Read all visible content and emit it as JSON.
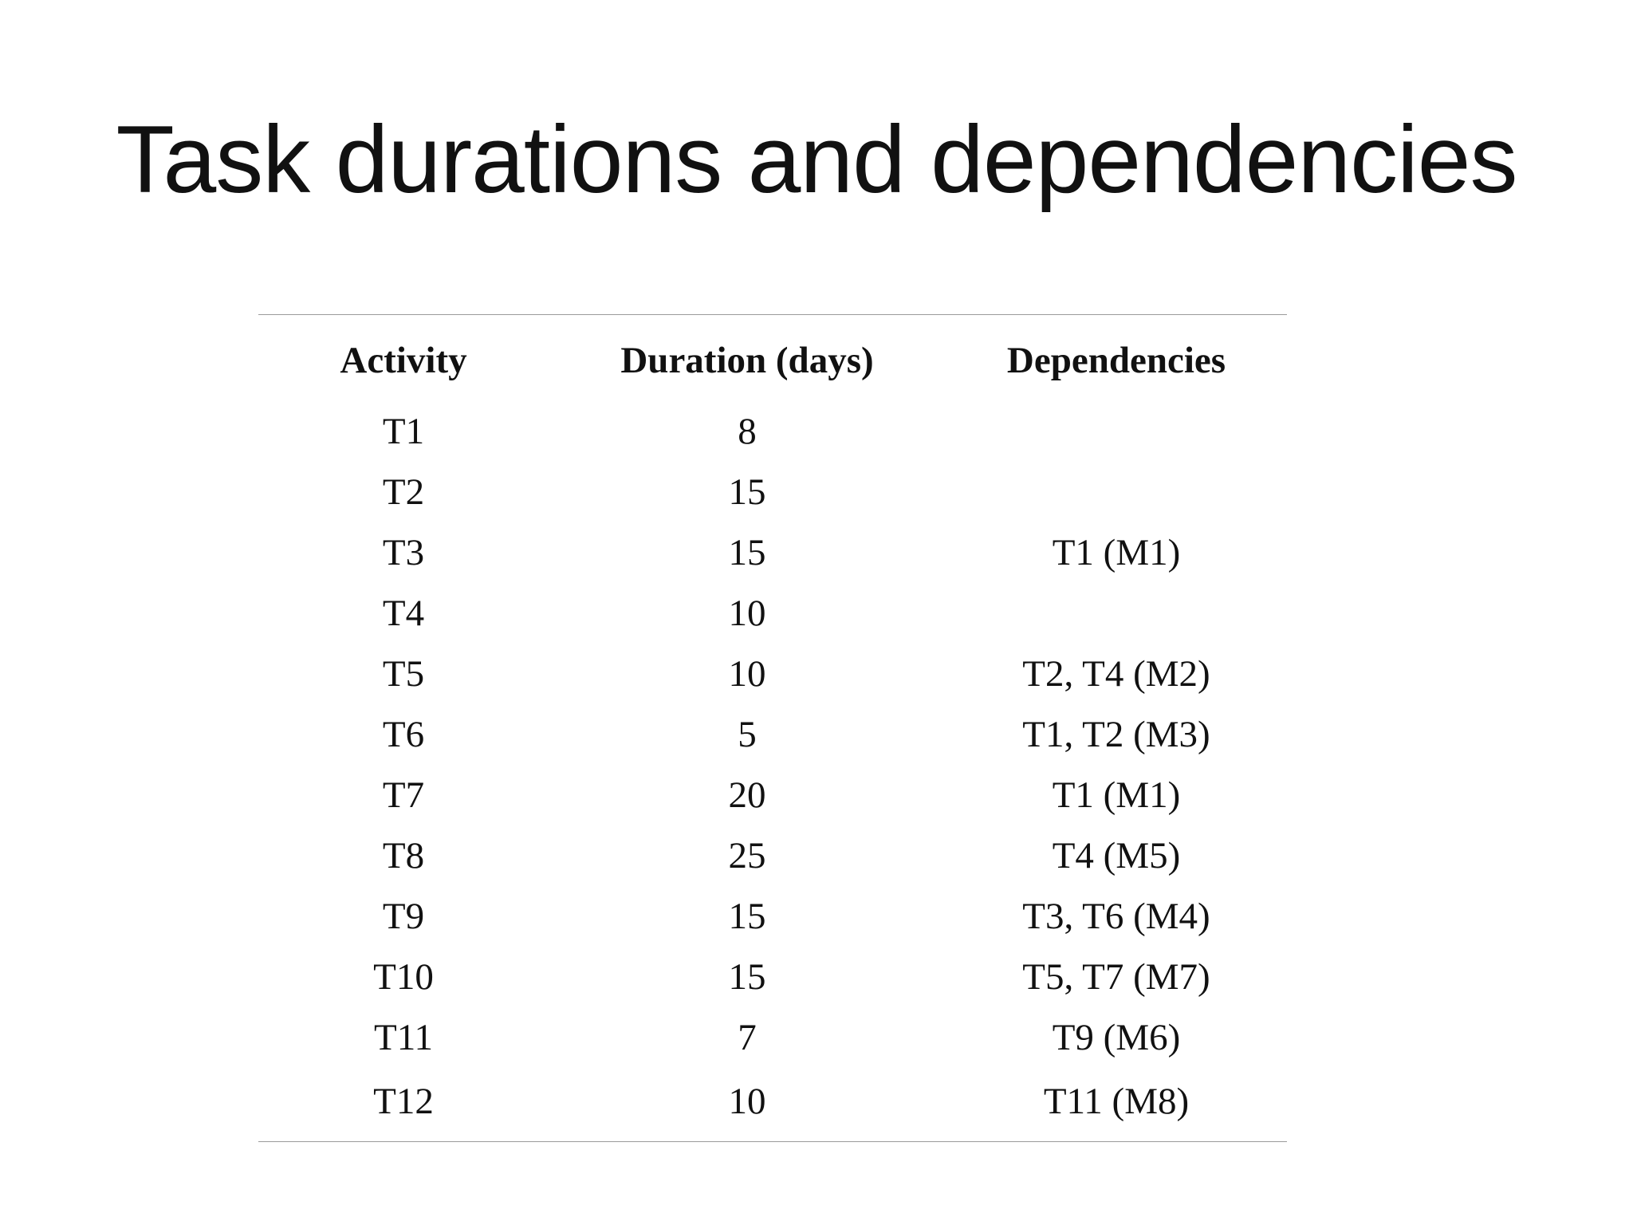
{
  "slide": {
    "title": "Task durations and dependencies"
  },
  "table": {
    "headers": [
      "Activity",
      "Duration (days)",
      "Dependencies"
    ],
    "rows": [
      [
        "T1",
        "8",
        ""
      ],
      [
        "T2",
        "15",
        ""
      ],
      [
        "T3",
        "15",
        "T1 (M1)"
      ],
      [
        "T4",
        "10",
        ""
      ],
      [
        "T5",
        "10",
        "T2, T4 (M2)"
      ],
      [
        "T6",
        "5",
        "T1, T2 (M3)"
      ],
      [
        "T7",
        "20",
        "T1 (M1)"
      ],
      [
        "T8",
        "25",
        "T4 (M5)"
      ],
      [
        "T9",
        "15",
        "T3, T6 (M4)"
      ],
      [
        "T10",
        "15",
        "T5, T7 (M7)"
      ],
      [
        "T11",
        "7",
        "T9 (M6)"
      ],
      [
        "T12",
        "10",
        "T11 (M8)"
      ]
    ]
  }
}
